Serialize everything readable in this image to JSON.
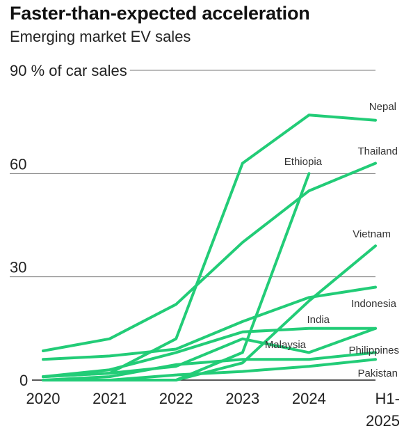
{
  "header": {
    "title": "Faster-than-expected acceleration",
    "subtitle": "Emerging market EV sales"
  },
  "chart_data": {
    "type": "line",
    "title": "Faster-than-expected acceleration",
    "subtitle": "Emerging market EV sales",
    "ylabel": "% of car sales",
    "x": [
      "2020",
      "2021",
      "2022",
      "2023",
      "2024",
      "H1-2025"
    ],
    "x_tick_labels": [
      "2020",
      "2021",
      "2022",
      "2023",
      "2024",
      "H1-\n2025"
    ],
    "ylim": [
      0,
      90
    ],
    "y_ticks": [
      0,
      30,
      60,
      90
    ],
    "grid": true,
    "color": "#22cc77",
    "series": [
      {
        "name": "Nepal",
        "values": [
          1,
          2,
          12,
          63,
          77,
          75.5
        ]
      },
      {
        "name": "Ethiopia",
        "values": [
          0,
          0,
          0,
          8,
          60,
          null
        ]
      },
      {
        "name": "Thailand",
        "values": [
          8.5,
          12,
          22,
          40,
          55,
          63
        ]
      },
      {
        "name": "Vietnam",
        "values": [
          0,
          0,
          0,
          5,
          23,
          39
        ]
      },
      {
        "name": "Indonesia",
        "values": [
          6,
          7,
          9,
          17,
          24,
          27
        ]
      },
      {
        "name": "India",
        "values": [
          1,
          3,
          8,
          14,
          15,
          15
        ]
      },
      {
        "name": "Malaysia",
        "values": [
          1,
          2,
          4,
          12,
          8,
          15
        ]
      },
      {
        "name": "Philippines",
        "values": [
          0,
          1,
          4.5,
          6,
          6,
          8
        ]
      },
      {
        "name": "Pakistan",
        "values": [
          0,
          0,
          1.5,
          2.5,
          4,
          6
        ]
      }
    ]
  }
}
